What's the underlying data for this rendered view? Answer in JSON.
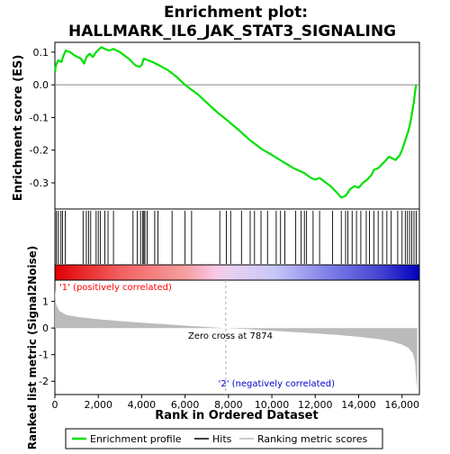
{
  "title_line1": "Enrichment plot:",
  "title_line2": "HALLMARK_IL6_JAK_STAT3_SIGNALING",
  "colors": {
    "es_line": "#00e000",
    "pos_zone": "#ff0000",
    "neg_zone": "#0000ff",
    "metric_fill": "#bbbbbb",
    "zero_cross_line": "#aaaaaa",
    "pos_label": "#ff0000",
    "neg_label": "#0000cc"
  },
  "annotations": {
    "zero_cross": "Zero cross at 7874",
    "positive_label": "'1' (positively correlated)",
    "negative_label": "'2' (negatively correlated)"
  },
  "legend": {
    "items": [
      {
        "label": "Enrichment profile",
        "kind": "line-green"
      },
      {
        "label": "Hits",
        "kind": "line-black"
      },
      {
        "label": "Ranking metric scores",
        "kind": "line-gray"
      }
    ]
  },
  "chart_data": [
    {
      "panel": "enrichment",
      "type": "line",
      "ylabel": "Enrichment score (ES)",
      "xlim": [
        0,
        16800
      ],
      "ylim": [
        -0.38,
        0.13
      ],
      "yticks": [
        0.1,
        0.0,
        -0.1,
        -0.2,
        -0.3
      ],
      "ytick_labels": [
        "0.1",
        "0.0",
        "-0.1",
        "-0.2",
        "-0.3"
      ],
      "x": [
        0,
        50,
        150,
        300,
        400,
        500,
        700,
        900,
        1200,
        1350,
        1450,
        1600,
        1750,
        1900,
        2050,
        2150,
        2300,
        2500,
        2700,
        3000,
        3400,
        3700,
        3900,
        4000,
        4100,
        4300,
        4500,
        4650,
        4800,
        5200,
        5600,
        6000,
        6600,
        7000,
        7500,
        7874,
        8500,
        9000,
        9500,
        10000,
        10500,
        11000,
        11500,
        11800,
        12000,
        12200,
        12700,
        13000,
        13200,
        13400,
        13600,
        13800,
        14000,
        14200,
        14400,
        14600,
        14700,
        14900,
        15200,
        15400,
        15700,
        15900,
        16000,
        16100,
        16200,
        16300,
        16400,
        16450,
        16500,
        16550,
        16600,
        16650
      ],
      "y": [
        0.04,
        0.06,
        0.075,
        0.07,
        0.09,
        0.105,
        0.1,
        0.09,
        0.08,
        0.065,
        0.085,
        0.095,
        0.085,
        0.1,
        0.11,
        0.115,
        0.11,
        0.105,
        0.11,
        0.1,
        0.08,
        0.06,
        0.055,
        0.06,
        0.08,
        0.075,
        0.07,
        0.065,
        0.06,
        0.045,
        0.025,
        0.0,
        -0.03,
        -0.055,
        -0.085,
        -0.105,
        -0.14,
        -0.17,
        -0.195,
        -0.215,
        -0.235,
        -0.255,
        -0.27,
        -0.285,
        -0.29,
        -0.285,
        -0.31,
        -0.33,
        -0.345,
        -0.34,
        -0.32,
        -0.31,
        -0.315,
        -0.3,
        -0.29,
        -0.275,
        -0.26,
        -0.255,
        -0.235,
        -0.22,
        -0.23,
        -0.215,
        -0.2,
        -0.18,
        -0.16,
        -0.14,
        -0.11,
        -0.09,
        -0.07,
        -0.05,
        -0.02,
        0.0
      ],
      "hits": [
        60,
        150,
        280,
        350,
        480,
        1300,
        1450,
        1550,
        1650,
        1900,
        2000,
        2100,
        2300,
        2450,
        2700,
        3600,
        3800,
        3950,
        4050,
        4100,
        4150,
        4250,
        4600,
        4750,
        5400,
        6000,
        6300,
        7600,
        7900,
        8100,
        8600,
        9000,
        9200,
        9500,
        9800,
        10200,
        10400,
        10600,
        11100,
        11350,
        11500,
        11600,
        11900,
        12200,
        12800,
        13200,
        13400,
        13500,
        13700,
        13900,
        14100,
        14350,
        14500,
        14700,
        14900,
        15100,
        15300,
        15500,
        15800,
        16000,
        16150,
        16250,
        16350,
        16450,
        16550,
        16650
      ]
    },
    {
      "panel": "ranked-metric",
      "type": "area",
      "xlabel": "Rank in Ordered Dataset",
      "ylabel": "Ranked list metric (Signal2Noise)",
      "xlim": [
        0,
        16800
      ],
      "ylim": [
        -2.5,
        1.8
      ],
      "yticks": [
        1,
        0,
        -1,
        -2
      ],
      "ytick_labels": [
        "1",
        "0",
        "-1",
        "-2"
      ],
      "xticks": [
        0,
        2000,
        4000,
        6000,
        8000,
        10000,
        12000,
        14000,
        16000
      ],
      "xtick_labels": [
        "0",
        "2,000",
        "4,000",
        "6,000",
        "8,000",
        "10,000",
        "12,000",
        "14,000",
        "16,000"
      ],
      "x": [
        0,
        50,
        200,
        500,
        1000,
        2000,
        3000,
        4000,
        5000,
        6000,
        7000,
        7874,
        9000,
        10000,
        11000,
        12000,
        13000,
        14000,
        15000,
        15500,
        16000,
        16300,
        16500,
        16600,
        16650,
        16700
      ],
      "y": [
        1.5,
        0.9,
        0.65,
        0.5,
        0.42,
        0.33,
        0.26,
        0.2,
        0.15,
        0.09,
        0.04,
        0.0,
        -0.05,
        -0.1,
        -0.15,
        -0.2,
        -0.26,
        -0.33,
        -0.42,
        -0.5,
        -0.62,
        -0.75,
        -0.95,
        -1.3,
        -1.9,
        -2.3
      ]
    }
  ]
}
